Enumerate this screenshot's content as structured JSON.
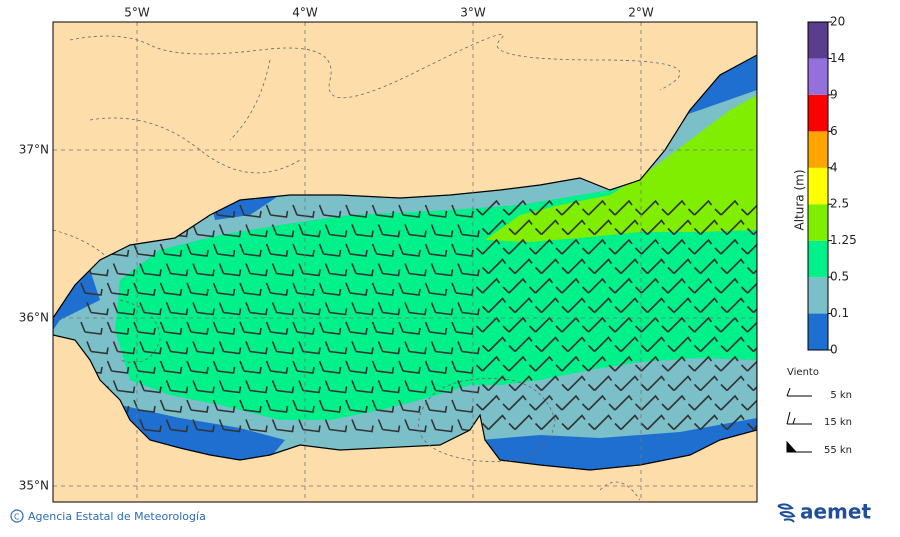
{
  "map": {
    "x_labels": [
      "5°W",
      "4°W",
      "3°W",
      "2°W"
    ],
    "y_labels": [
      "37°N",
      "36°N",
      "35°N"
    ]
  },
  "colorbar": {
    "title": "Altura (m)",
    "levels": [
      0,
      0.1,
      0.5,
      1.25,
      2.5,
      4,
      6,
      9,
      14,
      20
    ],
    "colors": [
      "#1f6fd1",
      "#7bbfc8",
      "#00f08a",
      "#7fee00",
      "#ffff00",
      "#ffa500",
      "#ff0000",
      "#9370db",
      "#5a3d8c"
    ]
  },
  "wind_legend": {
    "title": "Viento",
    "items": [
      "5 kn",
      "15 kn",
      "55 kn"
    ]
  },
  "footer": {
    "agency": "Agencia Estatal de Meteorología",
    "logo": "aemet"
  }
}
